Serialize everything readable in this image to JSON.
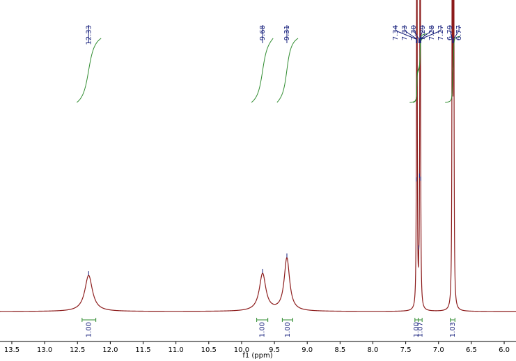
{
  "chart_data": {
    "type": "nmr",
    "x_label": "f1 (ppm)",
    "xlim": [
      13.68,
      5.82
    ],
    "xticks": [
      13.5,
      {
        "value": 13,
        "label": "13.0"
      },
      12.5,
      {
        "value": 12,
        "label": "12.0"
      },
      11.5,
      {
        "value": 11,
        "label": "11.0"
      },
      10.5,
      {
        "value": 10,
        "label": "10.0"
      },
      9.5,
      {
        "value": 9,
        "label": "9.0"
      },
      8.5,
      {
        "value": 8,
        "label": "8.0"
      },
      7.5,
      {
        "value": 7,
        "label": "7.0"
      },
      6.5,
      {
        "value": 6,
        "label": "6.0"
      }
    ],
    "ylim": [
      0,
      100
    ],
    "color": "#8b1a1a",
    "label_color": "#1a237e",
    "peaks": {
      "x": [
        12.33,
        9.68,
        9.31,
        7.34,
        7.33,
        7.3,
        7.29,
        7.28,
        7.27,
        6.79,
        6.77
      ],
      "labels": [
        "12.33",
        "9.68",
        "9.31",
        "7.34",
        "7.33",
        "7.30",
        "7.29",
        "7.28",
        "7.27",
        "6.79",
        "6.77"
      ],
      "heights": [
        11.6,
        12,
        17,
        6,
        250,
        5,
        5,
        250,
        6,
        250,
        250
      ],
      "linewidths": [
        0.07,
        0.06,
        0.05,
        0.004,
        0.004,
        0.004,
        0.004,
        0.004,
        0.004,
        0.004,
        0.004
      ]
    },
    "integrals": {
      "color": "#2e8b2e",
      "ranges": [
        [
          12.43,
          12.22
        ],
        [
          9.77,
          9.6
        ],
        [
          9.38,
          9.22
        ],
        [
          7.36,
          7.31
        ],
        [
          7.31,
          7.25
        ],
        [
          6.82,
          6.75
        ]
      ],
      "values": [
        1,
        1,
        1,
        1,
        1.07,
        1.03
      ],
      "value_labels": [
        "1.00",
        "1.00",
        "1.00",
        "1.00",
        "1.07",
        "1.03"
      ]
    }
  }
}
